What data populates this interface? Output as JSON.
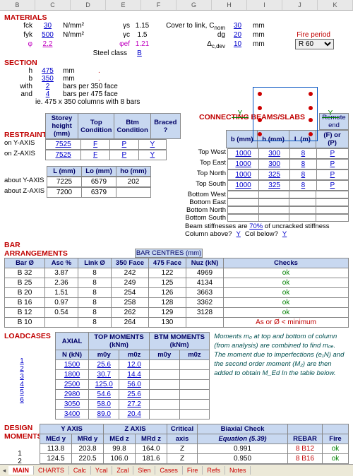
{
  "columns": [
    "B",
    "C",
    "D",
    "E",
    "F",
    "G",
    "H",
    "I",
    "J",
    "K"
  ],
  "materials": {
    "title": "MATERIALS",
    "fck": {
      "label": "fck",
      "value": "30",
      "unit": "N/mm²"
    },
    "fyk": {
      "label": "fyk",
      "value": "500",
      "unit": "N/mm²"
    },
    "phi": {
      "label": "φ",
      "value": "2.2"
    },
    "gamma_s": {
      "label": "γs",
      "value": "1.15"
    },
    "gamma_c": {
      "label": "γc",
      "value": "1.5"
    },
    "phi_ef": {
      "label": "φef",
      "value": "1.21"
    },
    "steel_class": {
      "label": "Steel class",
      "value": "B"
    },
    "cover": {
      "label": "Cover to link, C",
      "sub": "nom",
      "value": "30",
      "unit": "mm"
    },
    "dg": {
      "label": "dg",
      "value": "20",
      "unit": "mm"
    },
    "delta": {
      "label": "Δ",
      "sub": "c,dev",
      "value": "10",
      "unit": "mm"
    },
    "fire_period": {
      "label": "Fire period",
      "value": "R 60"
    }
  },
  "section": {
    "title": "SECTION",
    "h": {
      "label": "h",
      "value": "475",
      "unit": "mm"
    },
    "b": {
      "label": "b",
      "value": "350",
      "unit": "mm"
    },
    "with": {
      "label": "with",
      "value": "2",
      "note": "bars per 350 face"
    },
    "and": {
      "label": "and",
      "value": "4",
      "note": "bars per 475 face"
    },
    "summary": "ie. 475 x 350 columns with 8 bars",
    "ylabel": "Y",
    "ylabel2": "Y"
  },
  "restraints": {
    "title": "RESTRAINTS",
    "headers": [
      "Storey height (mm)",
      "Top Condition",
      "Btm Condition",
      "Braced ?"
    ],
    "rows": [
      {
        "label": "on Y-AXIS",
        "h": "7525",
        "top": "F",
        "btm": "P",
        "braced": "Y"
      },
      {
        "label": "on Z-AXIS",
        "h": "7525",
        "top": "F",
        "btm": "P",
        "braced": "Y"
      }
    ],
    "len_headers": [
      "L (mm)",
      "Lo (mm)",
      "ho (mm)"
    ],
    "len_rows": [
      {
        "label": "about Y-AXIS",
        "L": "7225",
        "Lo": "6579",
        "ho": "202"
      },
      {
        "label": "about Z-AXIS",
        "L": "7200",
        "Lo": "6379",
        "ho": ""
      }
    ]
  },
  "connecting": {
    "title": "CONNECTING BEAMS/SLABS",
    "remote": "Remote end",
    "headers": [
      "b (mm)",
      "h (mm)",
      "L (m)",
      "(F) or (P)"
    ],
    "rows": [
      {
        "label": "Top West",
        "b": "1000",
        "h": "300",
        "L": "8",
        "fp": "P"
      },
      {
        "label": "Top East",
        "b": "1000",
        "h": "300",
        "L": "8",
        "fp": "P"
      },
      {
        "label": "Top North",
        "b": "1000",
        "h": "325",
        "L": "8",
        "fp": "P"
      },
      {
        "label": "Top South",
        "b": "1000",
        "h": "325",
        "L": "8",
        "fp": "P"
      },
      {
        "label": "Bottom West",
        "b": "",
        "h": "",
        "L": "",
        "fp": ""
      },
      {
        "label": "Bottom East",
        "b": "",
        "h": "",
        "L": "",
        "fp": ""
      },
      {
        "label": "Bottom North",
        "b": "",
        "h": "",
        "L": "",
        "fp": ""
      },
      {
        "label": "Bottom South",
        "b": "",
        "h": "",
        "L": "",
        "fp": ""
      }
    ],
    "stiff_note": "Beam stiffnesses are",
    "stiff_val": "70%",
    "stiff_note2": "of uncracked stiffness",
    "col_above": "Column above?",
    "col_above_v": "Y",
    "col_below": "Col below?",
    "col_below_v": "Y"
  },
  "bars": {
    "title": "BAR ARRANGEMENTS",
    "centre_title": "BAR CENTRES (mm)",
    "headers": [
      "Bar Ø",
      "Asc %",
      "Link Ø",
      "350 Face",
      "475 Face",
      "Nuz (kN)",
      "Checks"
    ],
    "rows": [
      {
        "bar": "B 32",
        "asc": "3.87",
        "link": "8",
        "f350": "242",
        "f475": "122",
        "nuz": "4969",
        "chk": "ok",
        "chk_color": "#008000"
      },
      {
        "bar": "B 25",
        "asc": "2.36",
        "link": "8",
        "f350": "249",
        "f475": "125",
        "nuz": "4134",
        "chk": "ok",
        "chk_color": "#008000"
      },
      {
        "bar": "B 20",
        "asc": "1.51",
        "link": "8",
        "f350": "254",
        "f475": "126",
        "nuz": "3663",
        "chk": "ok",
        "chk_color": "#008000"
      },
      {
        "bar": "B 16",
        "asc": "0.97",
        "link": "8",
        "f350": "258",
        "f475": "128",
        "nuz": "3362",
        "chk": "ok",
        "chk_color": "#008000"
      },
      {
        "bar": "B 12",
        "asc": "0.54",
        "link": "8",
        "f350": "262",
        "f475": "129",
        "nuz": "3128",
        "chk": "ok",
        "chk_color": "#008000"
      },
      {
        "bar": "B 10",
        "asc": "",
        "link": "8",
        "f350": "264",
        "f475": "130",
        "nuz": "",
        "chk": "As or Ø < minimum",
        "chk_color": "#c00000"
      }
    ]
  },
  "loadcases": {
    "title": "LOADCASES",
    "group1": "AXIAL",
    "group2": "TOP MOMENTS (kNm)",
    "group3": "BTM MOMENTS (kNm)",
    "headers": [
      "N (kN)",
      "m0y",
      "m0z",
      "m0y",
      "m0z"
    ],
    "rows": [
      {
        "n": "1",
        "N": "1500",
        "t0y": "25.6",
        "t0z": "12.0",
        "b0y": "",
        "b0z": ""
      },
      {
        "n": "2",
        "N": "1800",
        "t0y": "30.7",
        "t0z": "14.4",
        "b0y": "",
        "b0z": ""
      },
      {
        "n": "3",
        "N": "2500",
        "t0y": "125.0",
        "t0z": "56.0",
        "b0y": "",
        "b0z": ""
      },
      {
        "n": "4",
        "N": "2980",
        "t0y": "54.6",
        "t0z": "25.6",
        "b0y": "",
        "b0z": ""
      },
      {
        "n": "5",
        "N": "3050",
        "t0y": "58.0",
        "t0z": "27.2",
        "b0y": "",
        "b0z": ""
      },
      {
        "n": "6",
        "N": "3400",
        "t0y": "89.0",
        "t0z": "20.4",
        "b0y": "",
        "b0z": ""
      }
    ],
    "note1": "Moments m₀ at top and bottom of column",
    "note2": "(from analysis) are combined to find m₀ₑ.",
    "note3": "The moment due to imperfections (e₁N) and",
    "note4": "the second order moment (M₂) are then",
    "note5": "added to obtain M_Ed In the table below."
  },
  "design": {
    "title": "DESIGN MOMENTS",
    "groups": [
      "Y AXIS",
      "Z AXIS",
      "Critical",
      "Biaxial Check",
      "",
      ""
    ],
    "headers": [
      "MEd y",
      "MRd y",
      "MEd z",
      "MRd z",
      "axis",
      "Equation (5.39)",
      "REBAR",
      "Fire"
    ],
    "rows": [
      {
        "n": "1",
        "mey": "113.8",
        "mry": "203.8",
        "mez": "99.8",
        "mrz": "164.0",
        "axis": "Z",
        "eq": "0.991",
        "rebar": "8 B12",
        "fire": "ok"
      },
      {
        "n": "2",
        "mey": "124.5",
        "mry": "220.5",
        "mez": "106.0",
        "mrz": "181.6",
        "axis": "Z",
        "eq": "0.950",
        "rebar": "8 B16",
        "fire": "ok"
      }
    ]
  },
  "tabs": {
    "items": [
      "MAIN",
      "CHARTS",
      "Calc",
      "Ycal",
      "Zcal",
      "Slen",
      "Cases",
      "Fire",
      "Refs",
      "Notes"
    ],
    "active": 0
  },
  "colors": {
    "header_bg": "#c8d8f0",
    "red": "#c00000",
    "blue": "#0000cc",
    "green": "#008000",
    "magenta": "#c000c0"
  }
}
